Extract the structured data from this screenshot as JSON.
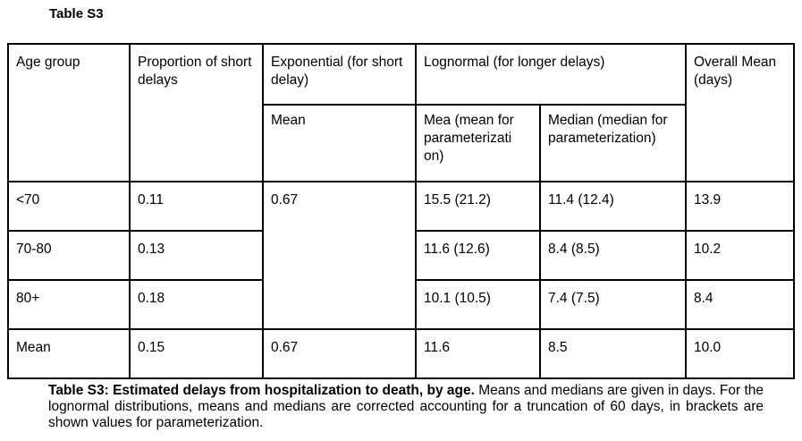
{
  "title": "Table S3",
  "headers": {
    "age_group": "Age group",
    "proportion": "Proportion of short delays",
    "exponential": "Exponential (for short delay)",
    "exp_mean": "Mean",
    "lognormal": "Lognormal (for longer delays)",
    "ln_mean": "Mea (mean for parameterizati on)",
    "ln_median": "Median (median for parameterization)",
    "overall": "Overall Mean (days)"
  },
  "rows": [
    {
      "age": "<70",
      "proportion": "0.11",
      "exp_mean": "0.67",
      "ln_mean": "15.5 (21.2)",
      "ln_median": "11.4 (12.4)",
      "overall": "13.9"
    },
    {
      "age": "70-80",
      "proportion": "0.13",
      "ln_mean": "11.6 (12.6)",
      "ln_median": "8.4 (8.5)",
      "overall": "10.2"
    },
    {
      "age": "80+",
      "proportion": "0.18",
      "ln_mean": "10.1 (10.5)",
      "ln_median": "7.4 (7.5)",
      "overall": "8.4"
    },
    {
      "age": "Mean",
      "proportion": "0.15",
      "exp_mean": "0.67",
      "ln_mean": "11.6",
      "ln_median": "8.5",
      "overall": "10.0"
    }
  ],
  "caption": {
    "bold": "Table S3: Estimated delays from hospitalization to death, by age.",
    "text": " Means and medians are given in days. For the lognormal distributions, means and medians are corrected accounting for a truncation of 60 days, in brackets are shown values for parameterization."
  }
}
